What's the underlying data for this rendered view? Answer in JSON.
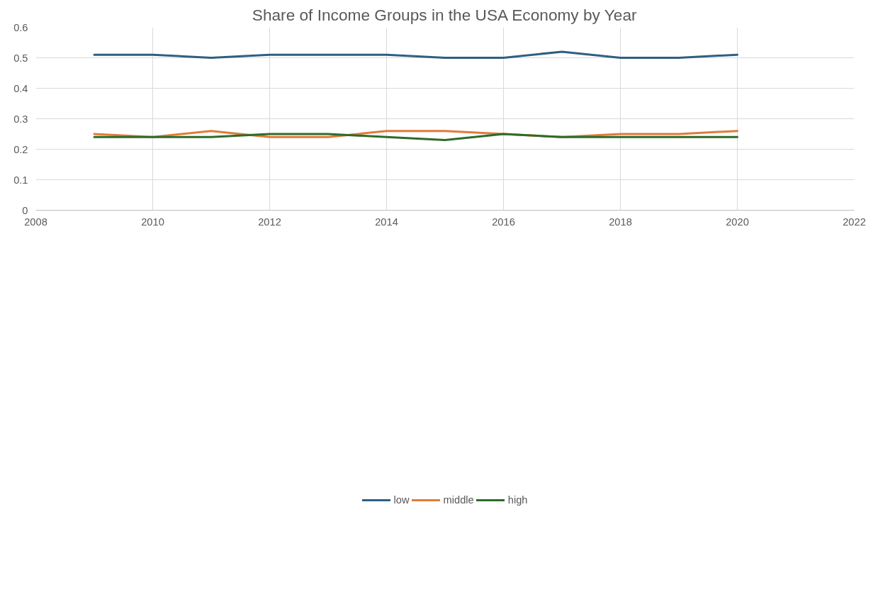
{
  "chart_data": {
    "type": "line",
    "title": "Share of Income Groups in the USA Economy by Year",
    "x": [
      2009,
      2010,
      2011,
      2012,
      2013,
      2014,
      2015,
      2016,
      2017,
      2018,
      2019,
      2020
    ],
    "series": [
      {
        "name": "low",
        "color": "#2f5f80",
        "values": [
          0.51,
          0.51,
          0.5,
          0.51,
          0.51,
          0.51,
          0.5,
          0.5,
          0.52,
          0.5,
          0.5,
          0.51
        ]
      },
      {
        "name": "middle",
        "color": "#e07b39",
        "values": [
          0.25,
          0.24,
          0.26,
          0.24,
          0.24,
          0.26,
          0.26,
          0.25,
          0.24,
          0.25,
          0.25,
          0.26
        ]
      },
      {
        "name": "high",
        "color": "#2e6b2a",
        "values": [
          0.24,
          0.24,
          0.24,
          0.25,
          0.25,
          0.24,
          0.23,
          0.25,
          0.24,
          0.24,
          0.24,
          0.24
        ]
      }
    ],
    "xlim": [
      2008,
      2022
    ],
    "xticks": [
      2008,
      2010,
      2012,
      2014,
      2016,
      2018,
      2020,
      2022
    ],
    "ylim": [
      0,
      0.6
    ],
    "yticks": [
      0,
      0.1,
      0.2,
      0.3,
      0.4,
      0.5,
      0.6
    ],
    "grid": true,
    "legend": "bottom",
    "marker": "none",
    "line_style": "solid"
  }
}
